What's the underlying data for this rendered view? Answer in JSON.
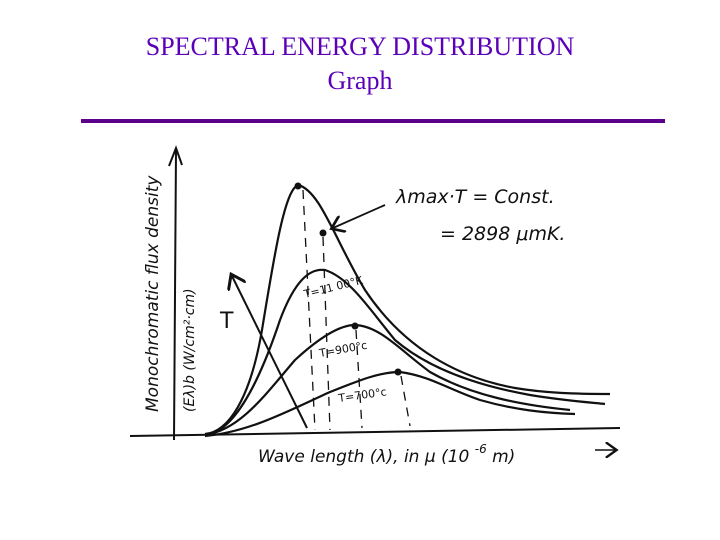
{
  "slide": {
    "title_line1": "SPECTRAL ENERGY DISTRIBUTION",
    "title_line2": "Graph",
    "rule_color": "#5b008b",
    "title_color": "#5b00b8"
  },
  "graph": {
    "y_axis_label_1": "Monochromatic flux density",
    "y_axis_label_2": "(Eλ)b (W/cm²·cm)",
    "x_axis_label_main": "Wave length (λ), in μ (10",
    "x_axis_exponent": "-6",
    "x_axis_unit": "m)",
    "arrow_label": "T",
    "law_line1": "λmax·T = Const.",
    "law_line2": "= 2898 μmK.",
    "curves": [
      {
        "label": "T=11 00°K"
      },
      {
        "label": "T=900°c"
      },
      {
        "label": "T=700°c"
      }
    ]
  }
}
